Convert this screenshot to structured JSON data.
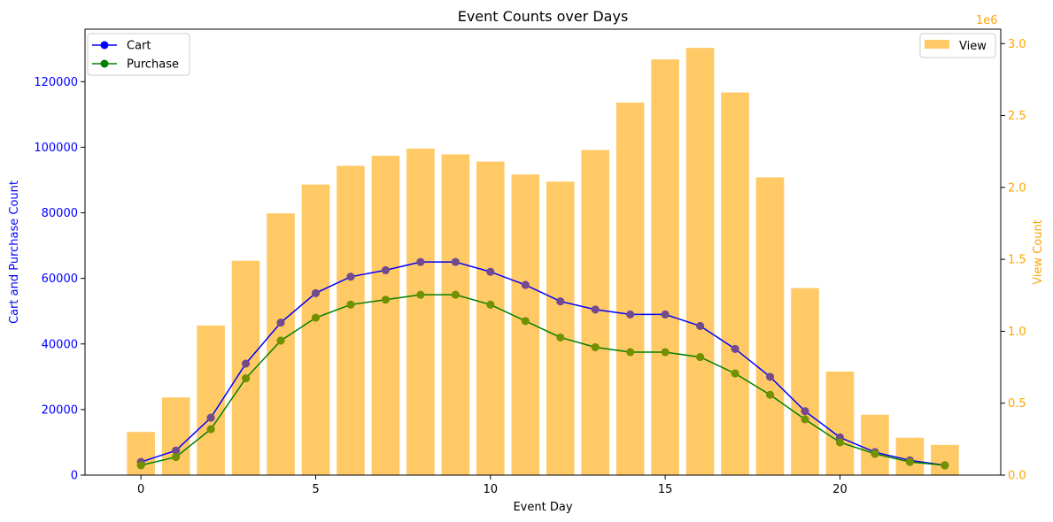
{
  "chart_data": {
    "type": "bar+line",
    "title": "Event Counts over Days",
    "xlabel": "Event Day",
    "ylabel_left": "Cart and Purchase Count",
    "ylabel_right": "View Count",
    "right_axis_multiplier": "1e6",
    "x": [
      0,
      1,
      2,
      3,
      4,
      5,
      6,
      7,
      8,
      9,
      10,
      11,
      12,
      13,
      14,
      15,
      16,
      17,
      18,
      19,
      20,
      21,
      22,
      23
    ],
    "x_ticks": [
      0,
      5,
      10,
      15,
      20
    ],
    "x_tick_labels": [
      "0",
      "5",
      "10",
      "15",
      "20"
    ],
    "xlim": [
      -1.6,
      24.6
    ],
    "ylim_left": [
      0,
      136000
    ],
    "ylim_right": [
      0,
      3.1
    ],
    "left_ticks": [
      0,
      20000,
      40000,
      60000,
      80000,
      100000,
      120000
    ],
    "left_tick_labels": [
      "0",
      "20000",
      "40000",
      "60000",
      "80000",
      "100000",
      "120000"
    ],
    "right_ticks": [
      0,
      0.5,
      1.0,
      1.5,
      2.0,
      2.5,
      3.0
    ],
    "right_tick_labels": [
      "0.0",
      "0.5",
      "1.0",
      "1.5",
      "2.0",
      "2.5",
      "3.0"
    ],
    "series": [
      {
        "name": "Cart",
        "axis": "left",
        "kind": "line",
        "color": "#0000ff",
        "values": [
          4000,
          7500,
          17500,
          34000,
          46500,
          55500,
          60500,
          62500,
          65000,
          65000,
          62000,
          58000,
          53000,
          50500,
          49000,
          49000,
          45500,
          38500,
          30000,
          19500,
          11500,
          7000,
          4500,
          3000
        ]
      },
      {
        "name": "Purchase",
        "axis": "left",
        "kind": "line",
        "color": "#008000",
        "values": [
          3000,
          5500,
          14000,
          29500,
          41000,
          48000,
          52000,
          53500,
          55000,
          55000,
          52000,
          47000,
          42000,
          39000,
          37500,
          37500,
          36000,
          31000,
          24500,
          17000,
          10000,
          6500,
          4000,
          3000
        ]
      },
      {
        "name": "View",
        "axis": "right",
        "kind": "bar",
        "color": "#ffa500",
        "opacity": 0.6,
        "values": [
          0.3,
          0.54,
          1.04,
          1.49,
          1.82,
          2.02,
          2.15,
          2.22,
          2.27,
          2.23,
          2.18,
          2.09,
          2.04,
          2.26,
          2.59,
          2.89,
          2.97,
          2.66,
          2.07,
          1.3,
          0.72,
          0.42,
          0.26,
          0.21
        ]
      }
    ],
    "legend_left": [
      "Cart",
      "Purchase"
    ],
    "legend_right": [
      "View"
    ],
    "legend_left_placement": "upper left",
    "legend_right_placement": "upper right",
    "left_axis_color": "#0000ff",
    "right_axis_color": "#ffa500"
  }
}
